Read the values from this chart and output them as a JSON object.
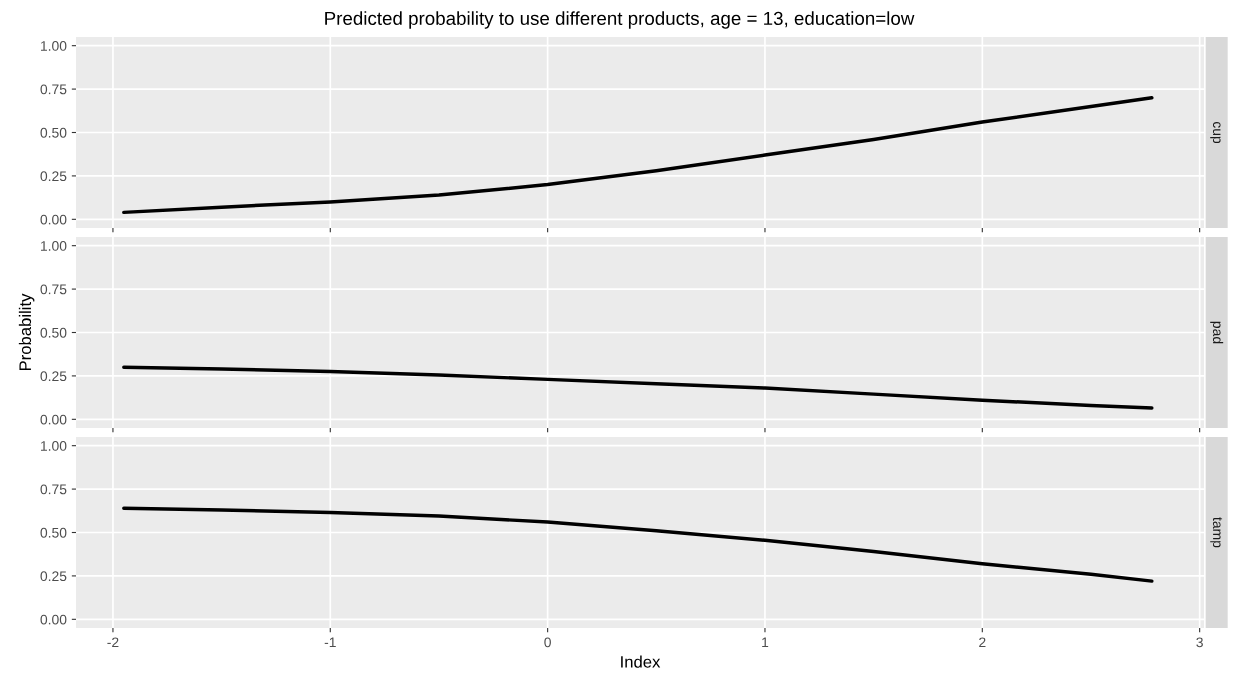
{
  "chart_data": [
    {
      "type": "line",
      "title": "Predicted probability to use different products, age = 13, education=low",
      "annotations": [
        "cup"
      ],
      "xlim": [
        -2.17,
        3.02
      ],
      "xticks": [
        -2,
        -1,
        0,
        1,
        2,
        3
      ],
      "ylim": [
        -0.05,
        1.05
      ],
      "yticks": [
        {
          "value": 0,
          "label": "0.00"
        },
        {
          "value": 0.25,
          "label": "0.25"
        },
        {
          "value": 0.5,
          "label": "0.50"
        },
        {
          "value": 0.75,
          "label": "0.75"
        },
        {
          "value": 1,
          "label": "1.00"
        }
      ],
      "tick_labels": "y",
      "grid": true,
      "legend": false,
      "series": [
        {
          "color": "#000000",
          "x": [
            -1.95,
            -1.5,
            -1,
            -0.5,
            0,
            0.5,
            1,
            1.5,
            2,
            2.5,
            2.78
          ],
          "values": [
            0.04,
            0.07,
            0.1,
            0.14,
            0.2,
            0.28,
            0.37,
            0.46,
            0.56,
            0.65,
            0.7
          ]
        }
      ]
    },
    {
      "type": "line",
      "ylabel": "Probability",
      "annotations": [
        "pad"
      ],
      "xlim": [
        -2.17,
        3.02
      ],
      "xticks": [
        -2,
        -1,
        0,
        1,
        2,
        3
      ],
      "ylim": [
        -0.05,
        1.05
      ],
      "yticks": [
        {
          "value": 0,
          "label": "0.00"
        },
        {
          "value": 0.25,
          "label": "0.25"
        },
        {
          "value": 0.5,
          "label": "0.50"
        },
        {
          "value": 0.75,
          "label": "0.75"
        },
        {
          "value": 1,
          "label": "1.00"
        }
      ],
      "tick_labels": "y",
      "grid": true,
      "legend": false,
      "series": [
        {
          "color": "#000000",
          "x": [
            -1.95,
            -1.5,
            -1,
            -0.5,
            0,
            0.5,
            1,
            1.5,
            2,
            2.5,
            2.78
          ],
          "values": [
            0.3,
            0.29,
            0.275,
            0.255,
            0.23,
            0.205,
            0.18,
            0.145,
            0.11,
            0.08,
            0.065
          ]
        }
      ]
    },
    {
      "type": "line",
      "xlabel": "Index",
      "annotations": [
        "tamp"
      ],
      "xlim": [
        -2.17,
        3.02
      ],
      "xticks": [
        -2,
        -1,
        0,
        1,
        2,
        3
      ],
      "ylim": [
        -0.05,
        1.05
      ],
      "yticks": [
        {
          "value": 0,
          "label": "0.00"
        },
        {
          "value": 0.25,
          "label": "0.25"
        },
        {
          "value": 0.5,
          "label": "0.50"
        },
        {
          "value": 0.75,
          "label": "0.75"
        },
        {
          "value": 1,
          "label": "1.00"
        }
      ],
      "grid": true,
      "legend": false,
      "series": [
        {
          "color": "#000000",
          "x": [
            -1.95,
            -1.5,
            -1,
            -0.5,
            0,
            0.5,
            1,
            1.5,
            2,
            2.5,
            2.78
          ],
          "values": [
            0.64,
            0.63,
            0.615,
            0.595,
            0.56,
            0.51,
            0.455,
            0.39,
            0.32,
            0.26,
            0.22
          ]
        }
      ]
    }
  ]
}
